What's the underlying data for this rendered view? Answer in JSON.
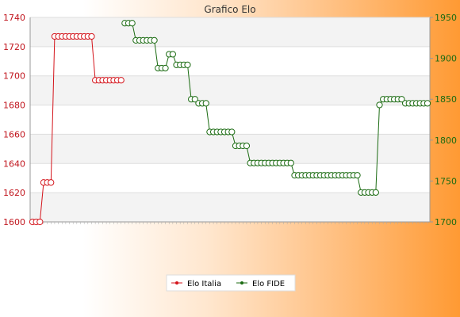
{
  "window": {
    "title": "Grafico Elo"
  },
  "colors": {
    "italia": "#d4141b",
    "fide": "#1b6b12",
    "band": "#f3f3f3",
    "grid": "#dddddd"
  },
  "chart_data": {
    "type": "line",
    "title": "Grafico Elo",
    "xlabel": "",
    "ylabel": "",
    "y_left": {
      "min": 1600,
      "max": 1740,
      "ticks": [
        1600,
        1620,
        1640,
        1660,
        1680,
        1700,
        1720,
        1740
      ]
    },
    "y_right": {
      "min": 1700,
      "max": 1950,
      "ticks": [
        1700,
        1750,
        1800,
        1850,
        1900,
        1950
      ]
    },
    "legend_position": "bottom",
    "grid": true,
    "x_count": 108,
    "series": [
      {
        "name": "Elo Italia",
        "axis": "left",
        "runs": [
          {
            "start": 0,
            "count": 3,
            "value": 1600
          },
          {
            "start": 3,
            "count": 3,
            "value": 1627
          },
          {
            "start": 6,
            "count": 11,
            "value": 1727
          },
          {
            "start": 17,
            "count": 8,
            "value": 1697
          }
        ]
      },
      {
        "name": "Elo FIDE",
        "axis": "right",
        "runs": [
          {
            "start": 25,
            "count": 3,
            "value": 1943
          },
          {
            "start": 28,
            "count": 6,
            "value": 1922
          },
          {
            "start": 34,
            "count": 3,
            "value": 1888
          },
          {
            "start": 37,
            "count": 2,
            "value": 1905
          },
          {
            "start": 39,
            "count": 4,
            "value": 1892
          },
          {
            "start": 43,
            "count": 2,
            "value": 1850
          },
          {
            "start": 45,
            "count": 3,
            "value": 1845
          },
          {
            "start": 48,
            "count": 7,
            "value": 1810
          },
          {
            "start": 55,
            "count": 4,
            "value": 1793
          },
          {
            "start": 59,
            "count": 12,
            "value": 1772
          },
          {
            "start": 71,
            "count": 18,
            "value": 1757
          },
          {
            "start": 89,
            "count": 5,
            "value": 1736
          },
          {
            "start": 94,
            "count": 1,
            "value": 1843
          },
          {
            "start": 95,
            "count": 6,
            "value": 1850
          },
          {
            "start": 101,
            "count": 7,
            "value": 1845
          }
        ]
      }
    ]
  }
}
